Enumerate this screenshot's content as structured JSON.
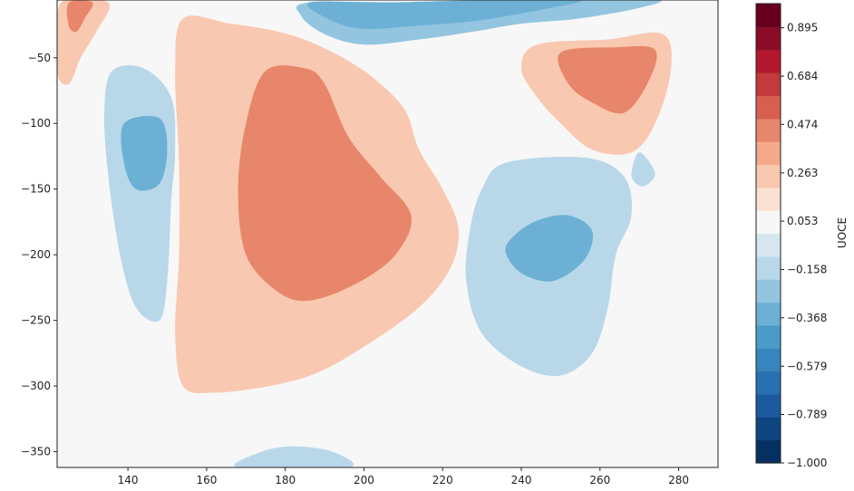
{
  "chart_data": {
    "type": "heatmap",
    "subtype": "filled-contour",
    "title": "",
    "xlabel": "",
    "ylabel": "",
    "xlim": [
      122,
      290
    ],
    "ylim": [
      -362,
      -6
    ],
    "x_ticks": [
      140,
      160,
      180,
      200,
      220,
      240,
      260,
      280
    ],
    "y_ticks": [
      -50,
      -100,
      -150,
      -200,
      -250,
      -300,
      -350
    ],
    "colorbar": {
      "label": "UOCE",
      "colormap": "RdBu_r",
      "vmin": -1.0,
      "vmax": 1.0,
      "levels": 20,
      "tick_labels": [
        "0.895",
        "0.684",
        "0.474",
        "0.263",
        "0.053",
        "−0.158",
        "−0.368",
        "−0.579",
        "−0.789",
        "−1.000"
      ],
      "tick_values": [
        0.895,
        0.684,
        0.474,
        0.263,
        0.053,
        -0.158,
        -0.368,
        -0.579,
        -0.789,
        -1.0
      ],
      "colors": [
        "#053061",
        "#0e4480",
        "#1b5a9f",
        "#2870b1",
        "#3685bc",
        "#4b9bc8",
        "#6cb0d5",
        "#93c5e0",
        "#b8d8ea",
        "#d6e7f1",
        "#f7f7f7",
        "#fbe1d4",
        "#f9c8b0",
        "#f4a989",
        "#e7866a",
        "#d6604d",
        "#c43a3c",
        "#b3172e",
        "#8a0c26",
        "#67001f"
      ]
    },
    "regions": [
      {
        "level": -0.263,
        "points": [
          [
            186,
            -8
          ],
          [
            215,
            -8
          ],
          [
            230,
            -8
          ],
          [
            258,
            -6
          ],
          [
            275,
            -6
          ],
          [
            270,
            -12
          ],
          [
            255,
            -20
          ],
          [
            240,
            -24
          ],
          [
            228,
            -30
          ],
          [
            214,
            -36
          ],
          [
            200,
            -40
          ],
          [
            190,
            -32
          ],
          [
            184,
            -18
          ]
        ]
      },
      {
        "level": -0.158,
        "points": [
          [
            136,
            -60
          ],
          [
            144,
            -58
          ],
          [
            151,
            -80
          ],
          [
            152,
            -120
          ],
          [
            151,
            -160
          ],
          [
            150,
            -220
          ],
          [
            148,
            -250
          ],
          [
            142,
            -240
          ],
          [
            138,
            -200
          ],
          [
            135,
            -140
          ],
          [
            134,
            -90
          ]
        ]
      },
      {
        "level": -0.158,
        "points": [
          [
            236,
            -130
          ],
          [
            256,
            -126
          ],
          [
            266,
            -140
          ],
          [
            268,
            -170
          ],
          [
            264,
            -200
          ],
          [
            262,
            -240
          ],
          [
            258,
            -275
          ],
          [
            250,
            -292
          ],
          [
            240,
            -285
          ],
          [
            230,
            -260
          ],
          [
            226,
            -220
          ],
          [
            227,
            -180
          ],
          [
            230,
            -150
          ]
        ]
      },
      {
        "level": -0.158,
        "points": [
          [
            174,
            -350
          ],
          [
            182,
            -346
          ],
          [
            192,
            -350
          ],
          [
            196,
            -362
          ],
          [
            168,
            -362
          ]
        ]
      },
      {
        "level": -0.158,
        "points": [
          [
            270,
            -122
          ],
          [
            274,
            -138
          ],
          [
            271,
            -148
          ],
          [
            268,
            -140
          ]
        ]
      },
      {
        "level": -0.368,
        "points": [
          [
            139,
            -100
          ],
          [
            148,
            -96
          ],
          [
            150,
            -120
          ],
          [
            148,
            -146
          ],
          [
            142,
            -150
          ],
          [
            139,
            -130
          ]
        ]
      },
      {
        "level": -0.368,
        "points": [
          [
            186,
            -8
          ],
          [
            205,
            -8
          ],
          [
            232,
            -6
          ],
          [
            255,
            -6
          ],
          [
            244,
            -14
          ],
          [
            228,
            -22
          ],
          [
            212,
            -26
          ],
          [
            200,
            -28
          ],
          [
            192,
            -22
          ]
        ]
      },
      {
        "level": -0.368,
        "points": [
          [
            238,
            -186
          ],
          [
            244,
            -174
          ],
          [
            252,
            -170
          ],
          [
            258,
            -182
          ],
          [
            256,
            -204
          ],
          [
            248,
            -220
          ],
          [
            240,
            -214
          ],
          [
            236,
            -198
          ]
        ]
      },
      {
        "level": 0.053,
        "points": [
          [
            157,
            -20
          ],
          [
            172,
            -20
          ],
          [
            200,
            -24
          ],
          [
            218,
            -30
          ],
          [
            232,
            -50
          ],
          [
            222,
            -70
          ],
          [
            196,
            -74
          ],
          [
            176,
            -70
          ],
          [
            166,
            -54
          ],
          [
            160,
            -36
          ]
        ]
      },
      {
        "level": 0.053,
        "points": [
          [
            176,
            -70
          ],
          [
            196,
            -72
          ],
          [
            220,
            -74
          ],
          [
            228,
            -90
          ],
          [
            222,
            -120
          ],
          [
            216,
            -160
          ],
          [
            220,
            -200
          ],
          [
            212,
            -240
          ],
          [
            196,
            -265
          ],
          [
            178,
            -268
          ],
          [
            168,
            -265
          ],
          [
            160,
            -250
          ],
          [
            158,
            -210
          ],
          [
            160,
            -160
          ],
          [
            164,
            -110
          ],
          [
            170,
            -82
          ]
        ]
      },
      {
        "level": 0.053,
        "points": [
          [
            240,
            -40
          ],
          [
            262,
            -36
          ],
          [
            280,
            -30
          ],
          [
            284,
            -80
          ],
          [
            280,
            -115
          ],
          [
            270,
            -130
          ],
          [
            258,
            -120
          ],
          [
            248,
            -100
          ],
          [
            238,
            -80
          ],
          [
            236,
            -60
          ]
        ]
      },
      {
        "level": 0.263,
        "points": [
          [
            123,
            -8
          ],
          [
            135,
            -8
          ],
          [
            132,
            -30
          ],
          [
            128,
            -50
          ],
          [
            125,
            -70
          ],
          [
            122,
            -60
          ]
        ]
      },
      {
        "level": 0.263,
        "points": [
          [
            154,
            -20
          ],
          [
            166,
            -24
          ],
          [
            178,
            -30
          ],
          [
            188,
            -40
          ],
          [
            200,
            -60
          ],
          [
            210,
            -88
          ],
          [
            214,
            -120
          ],
          [
            220,
            -150
          ],
          [
            224,
            -180
          ],
          [
            222,
            -210
          ],
          [
            214,
            -240
          ],
          [
            200,
            -270
          ],
          [
            188,
            -290
          ],
          [
            176,
            -300
          ],
          [
            162,
            -305
          ],
          [
            154,
            -300
          ],
          [
            152,
            -260
          ],
          [
            153,
            -200
          ],
          [
            153,
            -130
          ],
          [
            152,
            -60
          ]
        ]
      },
      {
        "level": 0.263,
        "points": [
          [
            244,
            -40
          ],
          [
            262,
            -36
          ],
          [
            276,
            -32
          ],
          [
            278,
            -60
          ],
          [
            274,
            -100
          ],
          [
            268,
            -122
          ],
          [
            258,
            -120
          ],
          [
            250,
            -100
          ],
          [
            244,
            -80
          ],
          [
            240,
            -58
          ]
        ]
      },
      {
        "level": 0.474,
        "points": [
          [
            175,
            -60
          ],
          [
            185,
            -58
          ],
          [
            190,
            -70
          ],
          [
            196,
            -110
          ],
          [
            204,
            -140
          ],
          [
            212,
            -170
          ],
          [
            208,
            -200
          ],
          [
            198,
            -222
          ],
          [
            186,
            -235
          ],
          [
            178,
            -228
          ],
          [
            170,
            -200
          ],
          [
            168,
            -150
          ],
          [
            170,
            -100
          ]
        ]
      },
      {
        "level": 0.474,
        "points": [
          [
            250,
            -46
          ],
          [
            264,
            -42
          ],
          [
            274,
            -44
          ],
          [
            272,
            -70
          ],
          [
            266,
            -92
          ],
          [
            258,
            -84
          ],
          [
            252,
            -70
          ]
        ]
      },
      {
        "level": 0.474,
        "points": [
          [
            125,
            -8
          ],
          [
            131,
            -8
          ],
          [
            129,
            -20
          ],
          [
            127,
            -30
          ],
          [
            125,
            -26
          ]
        ]
      }
    ]
  }
}
